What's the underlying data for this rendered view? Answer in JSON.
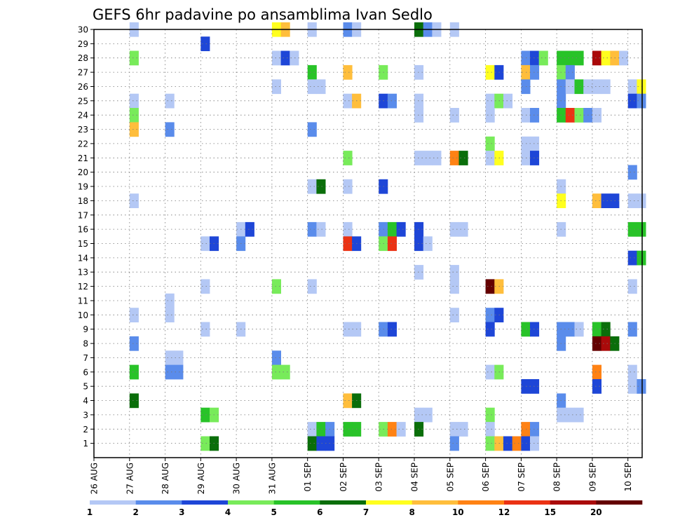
{
  "chart_data": {
    "type": "heatmap",
    "title": "GEFS 6hr padavine po ansamblima Ivan Sedlo",
    "xlabel": "",
    "ylabel": "",
    "x_ticks": [
      "26 AUG",
      "27 AUG",
      "28 AUG",
      "29 AUG",
      "30 AUG",
      "31 AUG",
      "01 SEP",
      "02 SEP",
      "03 SEP",
      "04 SEP",
      "05 SEP",
      "06 SEP",
      "07 SEP",
      "08 SEP",
      "09 SEP",
      "10 SEP"
    ],
    "xlim_days": [
      0,
      15.4
    ],
    "y_ticks": [
      1,
      2,
      3,
      4,
      5,
      6,
      7,
      8,
      9,
      10,
      11,
      12,
      13,
      14,
      15,
      16,
      17,
      18,
      19,
      20,
      21,
      22,
      23,
      24,
      25,
      26,
      27,
      28,
      29,
      30
    ],
    "ylim": [
      0,
      30
    ],
    "grid": true,
    "time_step_hours": 6,
    "colorbar": {
      "position": "bottom",
      "tick_labels": [
        "1",
        "2",
        "3",
        "4",
        "5",
        "6",
        "7",
        "8",
        "10",
        "12",
        "15",
        "20"
      ],
      "colors": [
        "#b4c8f5",
        "#5a8ceb",
        "#1e46d7",
        "#78eb5a",
        "#28c328",
        "#0a6e0a",
        "#ffff1e",
        "#ffbe3c",
        "#ff8214",
        "#eb3214",
        "#aa0a0a",
        "#640000"
      ]
    },
    "cells": [
      [
        1,
        30,
        0
      ],
      [
        5,
        30,
        6
      ],
      [
        5,
        30,
        7
      ],
      [
        6,
        30,
        0
      ],
      [
        7,
        30,
        1
      ],
      [
        7,
        30,
        0
      ],
      [
        9,
        30,
        5
      ],
      [
        9,
        30,
        1
      ],
      [
        9,
        30,
        0
      ],
      [
        10,
        30,
        0
      ],
      [
        3,
        29,
        2
      ],
      [
        1,
        28,
        3
      ],
      [
        5,
        28,
        0
      ],
      [
        5,
        28,
        2
      ],
      [
        5,
        28,
        0
      ],
      [
        12,
        28,
        1
      ],
      [
        12,
        28,
        2
      ],
      [
        12,
        28,
        3
      ],
      [
        13,
        28,
        4
      ],
      [
        13,
        28,
        4
      ],
      [
        13,
        28,
        4
      ],
      [
        14,
        28,
        10
      ],
      [
        14,
        28,
        6
      ],
      [
        14,
        28,
        7
      ],
      [
        14,
        28,
        0
      ],
      [
        6,
        27,
        4
      ],
      [
        7,
        27,
        7
      ],
      [
        8,
        27,
        3
      ],
      [
        9,
        27,
        0
      ],
      [
        11,
        27,
        6
      ],
      [
        11,
        27,
        2
      ],
      [
        12,
        27,
        7
      ],
      [
        12,
        27,
        1
      ],
      [
        13,
        27,
        3
      ],
      [
        13,
        27,
        1
      ],
      [
        5,
        26,
        0
      ],
      [
        6,
        26,
        0
      ],
      [
        6,
        26,
        0
      ],
      [
        12,
        26,
        1
      ],
      [
        13,
        26,
        1
      ],
      [
        13,
        26,
        0
      ],
      [
        13,
        26,
        4
      ],
      [
        13,
        26,
        0
      ],
      [
        14,
        26,
        0
      ],
      [
        14,
        26,
        0
      ],
      [
        15,
        26,
        0
      ],
      [
        15,
        26,
        6
      ],
      [
        1,
        25,
        0
      ],
      [
        2,
        25,
        0
      ],
      [
        7,
        25,
        0
      ],
      [
        7,
        25,
        7
      ],
      [
        8,
        25,
        2
      ],
      [
        8,
        25,
        1
      ],
      [
        9,
        25,
        0
      ],
      [
        11,
        25,
        0
      ],
      [
        11,
        25,
        3
      ],
      [
        11,
        25,
        0
      ],
      [
        13,
        25,
        1
      ],
      [
        15,
        25,
        2
      ],
      [
        15,
        25,
        1
      ],
      [
        1,
        24,
        3
      ],
      [
        9,
        24,
        0
      ],
      [
        10,
        24,
        0
      ],
      [
        11,
        24,
        0
      ],
      [
        12,
        24,
        0
      ],
      [
        12,
        24,
        1
      ],
      [
        13,
        24,
        4
      ],
      [
        13,
        24,
        9
      ],
      [
        13,
        24,
        3
      ],
      [
        13,
        24,
        1
      ],
      [
        14,
        24,
        0
      ],
      [
        1,
        23,
        7
      ],
      [
        2,
        23,
        1
      ],
      [
        6,
        23,
        1
      ],
      [
        11,
        22,
        3
      ],
      [
        12,
        22,
        0
      ],
      [
        12,
        22,
        0
      ],
      [
        7,
        21,
        3
      ],
      [
        9,
        21,
        0
      ],
      [
        9,
        21,
        0
      ],
      [
        9,
        21,
        0
      ],
      [
        10,
        21,
        8
      ],
      [
        10,
        21,
        5
      ],
      [
        11,
        21,
        0
      ],
      [
        11,
        21,
        6
      ],
      [
        12,
        21,
        0
      ],
      [
        12,
        21,
        2
      ],
      [
        15,
        20,
        1
      ],
      [
        6,
        19,
        0
      ],
      [
        6,
        19,
        5
      ],
      [
        7,
        19,
        0
      ],
      [
        8,
        19,
        2
      ],
      [
        13,
        19,
        0
      ],
      [
        1,
        18,
        0
      ],
      [
        13,
        18,
        6
      ],
      [
        14,
        18,
        7
      ],
      [
        14,
        18,
        2
      ],
      [
        14,
        18,
        2
      ],
      [
        15,
        18,
        0
      ],
      [
        15,
        18,
        0
      ],
      [
        4,
        16,
        0
      ],
      [
        4,
        16,
        2
      ],
      [
        6,
        16,
        1
      ],
      [
        6,
        16,
        0
      ],
      [
        7,
        16,
        0
      ],
      [
        8,
        16,
        1
      ],
      [
        8,
        16,
        4
      ],
      [
        8,
        16,
        2
      ],
      [
        9,
        16,
        2
      ],
      [
        10,
        16,
        0
      ],
      [
        10,
        16,
        0
      ],
      [
        13,
        16,
        0
      ],
      [
        15,
        16,
        4
      ],
      [
        15,
        16,
        4
      ],
      [
        3,
        15,
        0
      ],
      [
        3,
        15,
        2
      ],
      [
        4,
        15,
        1
      ],
      [
        7,
        15,
        9
      ],
      [
        7,
        15,
        2
      ],
      [
        8,
        15,
        3
      ],
      [
        8,
        15,
        9
      ],
      [
        9,
        15,
        2
      ],
      [
        9,
        15,
        0
      ],
      [
        15,
        14,
        2
      ],
      [
        15,
        14,
        4
      ],
      [
        9,
        13,
        0
      ],
      [
        10,
        13,
        0
      ],
      [
        3,
        12,
        0
      ],
      [
        5,
        12,
        3
      ],
      [
        6,
        12,
        0
      ],
      [
        10,
        12,
        0
      ],
      [
        11,
        12,
        11
      ],
      [
        11,
        12,
        7
      ],
      [
        15,
        12,
        0
      ],
      [
        2,
        11,
        0
      ],
      [
        1,
        10,
        0
      ],
      [
        2,
        10,
        0
      ],
      [
        10,
        10,
        0
      ],
      [
        11,
        10,
        1
      ],
      [
        11,
        10,
        2
      ],
      [
        3,
        9,
        0
      ],
      [
        4,
        9,
        0
      ],
      [
        7,
        9,
        0
      ],
      [
        7,
        9,
        0
      ],
      [
        8,
        9,
        1
      ],
      [
        8,
        9,
        2
      ],
      [
        11,
        9,
        2
      ],
      [
        12,
        9,
        4
      ],
      [
        12,
        9,
        2
      ],
      [
        13,
        9,
        1
      ],
      [
        13,
        9,
        1
      ],
      [
        13,
        9,
        0
      ],
      [
        14,
        9,
        4
      ],
      [
        14,
        9,
        5
      ],
      [
        15,
        9,
        1
      ],
      [
        1,
        8,
        1
      ],
      [
        13,
        8,
        1
      ],
      [
        14,
        8,
        11
      ],
      [
        14,
        8,
        10
      ],
      [
        14,
        8,
        5
      ],
      [
        2,
        7,
        0
      ],
      [
        2,
        7,
        0
      ],
      [
        5,
        7,
        1
      ],
      [
        1,
        6,
        4
      ],
      [
        2,
        6,
        1
      ],
      [
        2,
        6,
        1
      ],
      [
        5,
        6,
        3
      ],
      [
        5,
        6,
        3
      ],
      [
        11,
        6,
        0
      ],
      [
        11,
        6,
        3
      ],
      [
        14,
        6,
        8
      ],
      [
        15,
        6,
        0
      ],
      [
        12,
        5,
        2
      ],
      [
        12,
        5,
        2
      ],
      [
        14,
        5,
        2
      ],
      [
        15,
        5,
        0
      ],
      [
        15,
        5,
        1
      ],
      [
        1,
        4,
        5
      ],
      [
        7,
        4,
        7
      ],
      [
        7,
        4,
        5
      ],
      [
        13,
        4,
        1
      ],
      [
        3,
        3,
        4
      ],
      [
        3,
        3,
        3
      ],
      [
        9,
        3,
        0
      ],
      [
        9,
        3,
        0
      ],
      [
        11,
        3,
        3
      ],
      [
        13,
        3,
        0
      ],
      [
        13,
        3,
        0
      ],
      [
        13,
        3,
        0
      ],
      [
        6,
        2,
        0
      ],
      [
        6,
        2,
        4
      ],
      [
        6,
        2,
        1
      ],
      [
        7,
        2,
        4
      ],
      [
        7,
        2,
        4
      ],
      [
        8,
        2,
        3
      ],
      [
        8,
        2,
        8
      ],
      [
        8,
        2,
        0
      ],
      [
        9,
        2,
        5
      ],
      [
        10,
        2,
        0
      ],
      [
        10,
        2,
        0
      ],
      [
        11,
        2,
        0
      ],
      [
        12,
        2,
        8
      ],
      [
        12,
        2,
        1
      ],
      [
        3,
        1,
        3
      ],
      [
        3,
        1,
        5
      ],
      [
        6,
        1,
        5
      ],
      [
        6,
        1,
        2
      ],
      [
        6,
        1,
        2
      ],
      [
        10,
        1,
        1
      ],
      [
        11,
        1,
        3
      ],
      [
        11,
        1,
        7
      ],
      [
        11,
        1,
        2
      ],
      [
        11,
        1,
        8
      ],
      [
        12,
        1,
        2
      ],
      [
        12,
        1,
        0
      ]
    ]
  }
}
